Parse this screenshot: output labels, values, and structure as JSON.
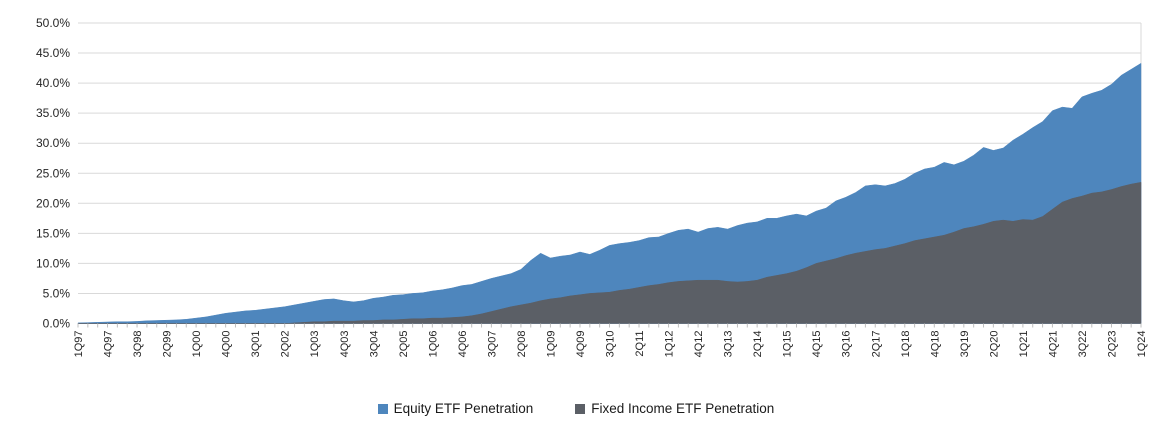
{
  "chart_data": {
    "type": "area",
    "style": "overlapping-areas",
    "title": "",
    "categories": [
      "1Q97",
      "2Q97",
      "3Q97",
      "4Q97",
      "1Q98",
      "2Q98",
      "3Q98",
      "4Q98",
      "1Q99",
      "2Q99",
      "3Q99",
      "4Q99",
      "1Q00",
      "2Q00",
      "3Q00",
      "4Q00",
      "1Q01",
      "2Q01",
      "3Q01",
      "4Q01",
      "1Q02",
      "2Q02",
      "3Q02",
      "4Q02",
      "1Q03",
      "2Q03",
      "3Q03",
      "4Q03",
      "1Q04",
      "2Q04",
      "3Q04",
      "4Q04",
      "1Q05",
      "2Q05",
      "3Q05",
      "4Q05",
      "1Q06",
      "2Q06",
      "3Q06",
      "4Q06",
      "1Q07",
      "2Q07",
      "3Q07",
      "4Q07",
      "1Q08",
      "2Q08",
      "3Q08",
      "4Q08",
      "1Q09",
      "2Q09",
      "3Q09",
      "4Q09",
      "1Q10",
      "2Q10",
      "3Q10",
      "4Q10",
      "1Q11",
      "2Q11",
      "3Q11",
      "4Q11",
      "1Q12",
      "2Q12",
      "3Q12",
      "4Q12",
      "1Q13",
      "2Q13",
      "3Q13",
      "4Q13",
      "1Q14",
      "2Q14",
      "3Q14",
      "4Q14",
      "1Q15",
      "2Q15",
      "3Q15",
      "4Q15",
      "1Q16",
      "2Q16",
      "3Q16",
      "4Q16",
      "1Q17",
      "2Q17",
      "3Q17",
      "4Q17",
      "1Q18",
      "2Q18",
      "3Q18",
      "4Q18",
      "1Q19",
      "2Q19",
      "3Q19",
      "4Q19",
      "1Q20",
      "2Q20",
      "3Q20",
      "4Q20",
      "1Q21",
      "2Q21",
      "3Q21",
      "4Q21",
      "1Q22",
      "2Q22",
      "3Q22",
      "4Q22",
      "1Q23",
      "2Q23",
      "3Q23",
      "4Q23",
      "1Q24"
    ],
    "label_every": 3,
    "series": [
      {
        "id": "equity-etf-penetration",
        "name": "Equity ETF Penetration",
        "color": "#4e86bd",
        "values": [
          0.1,
          0.15,
          0.2,
          0.25,
          0.3,
          0.3,
          0.35,
          0.45,
          0.5,
          0.55,
          0.6,
          0.7,
          0.9,
          1.1,
          1.4,
          1.7,
          1.9,
          2.1,
          2.2,
          2.4,
          2.6,
          2.8,
          3.1,
          3.4,
          3.7,
          4.0,
          4.1,
          3.8,
          3.6,
          3.8,
          4.2,
          4.4,
          4.7,
          4.8,
          5.0,
          5.1,
          5.4,
          5.6,
          5.9,
          6.3,
          6.5,
          7.0,
          7.5,
          7.9,
          8.3,
          9.0,
          10.5,
          11.7,
          10.9,
          11.2,
          11.4,
          11.9,
          11.5,
          12.2,
          13.0,
          13.3,
          13.5,
          13.8,
          14.3,
          14.4,
          15.0,
          15.5,
          15.7,
          15.2,
          15.8,
          16.0,
          15.7,
          16.3,
          16.7,
          16.9,
          17.5,
          17.5,
          17.9,
          18.2,
          17.9,
          18.7,
          19.2,
          20.4,
          21.0,
          21.8,
          22.9,
          23.1,
          22.9,
          23.3,
          24.0,
          25.0,
          25.7,
          26.0,
          26.8,
          26.4,
          27.0,
          28.0,
          29.3,
          28.8,
          29.2,
          30.5,
          31.5,
          32.6,
          33.6,
          35.4,
          36.0,
          35.8,
          37.7,
          38.3,
          38.8,
          39.8,
          41.3,
          42.3,
          43.3
        ]
      },
      {
        "id": "fixed-income-etf-penetration",
        "name": "Fixed Income ETF Penetration",
        "color": "#5b5f66",
        "values": [
          0,
          0,
          0,
          0,
          0,
          0,
          0,
          0,
          0,
          0,
          0,
          0,
          0,
          0,
          0,
          0,
          0,
          0,
          0,
          0,
          0,
          0,
          0.1,
          0.2,
          0.3,
          0.3,
          0.4,
          0.4,
          0.4,
          0.5,
          0.5,
          0.6,
          0.6,
          0.7,
          0.8,
          0.8,
          0.9,
          0.9,
          1.0,
          1.1,
          1.3,
          1.6,
          2.0,
          2.4,
          2.8,
          3.1,
          3.4,
          3.8,
          4.1,
          4.3,
          4.6,
          4.8,
          5.0,
          5.1,
          5.2,
          5.5,
          5.7,
          6.0,
          6.3,
          6.5,
          6.8,
          7.0,
          7.1,
          7.2,
          7.2,
          7.2,
          7.0,
          6.9,
          7.0,
          7.2,
          7.7,
          8.0,
          8.3,
          8.7,
          9.3,
          10.0,
          10.4,
          10.8,
          11.3,
          11.7,
          12.0,
          12.3,
          12.5,
          12.9,
          13.3,
          13.8,
          14.1,
          14.4,
          14.7,
          15.2,
          15.8,
          16.1,
          16.5,
          17.0,
          17.2,
          17.0,
          17.3,
          17.2,
          17.8,
          19.0,
          20.2,
          20.8,
          21.2,
          21.7,
          21.9,
          22.3,
          22.8,
          23.2,
          23.5
        ]
      }
    ],
    "ylim": [
      0,
      50
    ],
    "ytick_step": 5,
    "y_ticks": [
      "0.0%",
      "5.0%",
      "10.0%",
      "15.0%",
      "20.0%",
      "25.0%",
      "30.0%",
      "35.0%",
      "40.0%",
      "45.0%",
      "50.0%"
    ],
    "grid": true,
    "grid_color": "#d9d9d9",
    "axis_color": "#c0c0c0",
    "tick_color": "#bfbfbf",
    "label_color": "#262626",
    "legend_position": "bottom"
  }
}
